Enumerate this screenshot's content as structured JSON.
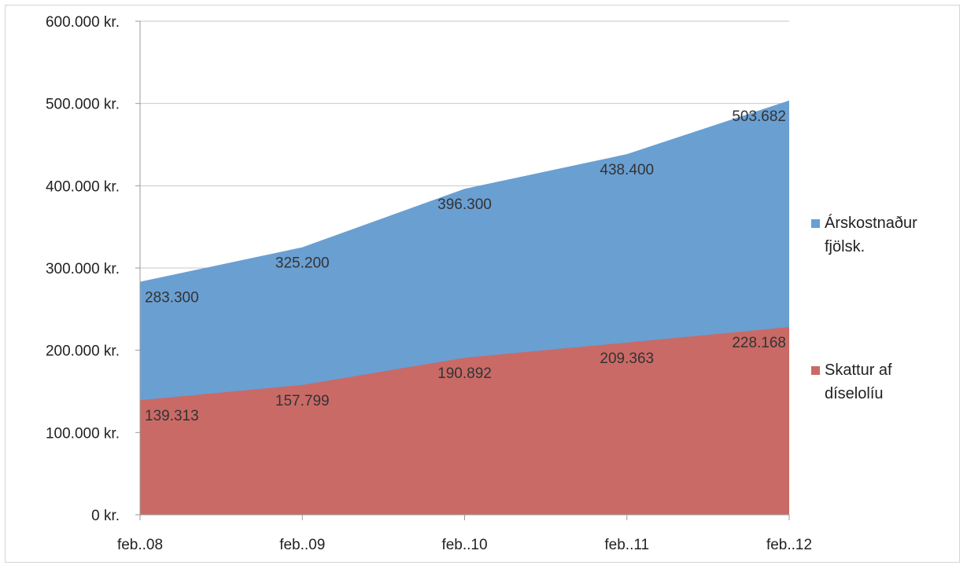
{
  "chart_data": {
    "type": "area",
    "stacked": false,
    "categories": [
      "feb..08",
      "feb..09",
      "feb..10",
      "feb..11",
      "feb..12"
    ],
    "series": [
      {
        "name": "Árskostnaður fjölsk.",
        "legend_lines": [
          "Árskostnaður",
          "fjölsk."
        ],
        "values": [
          283300,
          325200,
          396300,
          438400,
          503682
        ],
        "labels": [
          "283.300",
          "325.200",
          "396.300",
          "438.400",
          "503.682"
        ],
        "color": "#6a9fd2"
      },
      {
        "name": "Skattur af díselolíu",
        "legend_lines": [
          "Skattur af",
          "díselolíu"
        ],
        "values": [
          139313,
          157799,
          190892,
          209363,
          228168
        ],
        "labels": [
          "139.313",
          "157.799",
          "190.892",
          "209.363",
          "228.168"
        ],
        "color": "#c96a66"
      }
    ],
    "y_ticks": [
      {
        "value": 0,
        "label": "0 kr."
      },
      {
        "value": 100000,
        "label": "100.000 kr."
      },
      {
        "value": 200000,
        "label": "200.000 kr."
      },
      {
        "value": 300000,
        "label": "300.000 kr."
      },
      {
        "value": 400000,
        "label": "400.000 kr."
      },
      {
        "value": 500000,
        "label": "500.000 kr."
      },
      {
        "value": 600000,
        "label": "600.000 kr."
      }
    ],
    "ylim": [
      0,
      600000
    ],
    "grid": true,
    "legend_position": "right",
    "title": "",
    "xlabel": "",
    "ylabel": ""
  }
}
